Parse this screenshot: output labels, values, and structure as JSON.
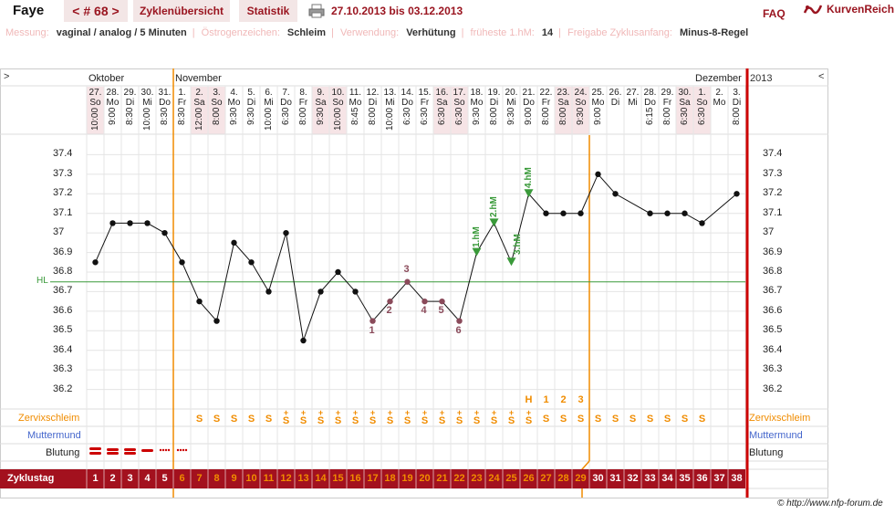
{
  "header": {
    "name": "Faye",
    "cycle_tab": "< # 68 >",
    "tab_overview": "Zyklenübersicht",
    "tab_stats": "Statistik",
    "date_range": "27.10.2013 bis 03.12.2013",
    "faq": "FAQ",
    "brand": "KurvenReich"
  },
  "info": [
    {
      "label": "Messung:",
      "value": "vaginal / analog / 5 Minuten"
    },
    {
      "label": "Östrogenzeichen:",
      "value": "Schleim"
    },
    {
      "label": "Verwendung:",
      "value": "Verhütung"
    },
    {
      "label": "früheste 1.hM:",
      "value": "14"
    },
    {
      "label": "Freigabe Zyklusanfang:",
      "value": "Minus-8-Regel"
    }
  ],
  "nav": {
    "left_arrow": ">",
    "right_arrow": "<",
    "year": "2013"
  },
  "months": [
    {
      "label": "Oktober",
      "col": 0
    },
    {
      "label": "November",
      "col": 5
    },
    {
      "label": "Dezember",
      "col": 35
    }
  ],
  "days": [
    {
      "date": "27.",
      "wd": "So",
      "time": "10:00",
      "we": true
    },
    {
      "date": "28.",
      "wd": "Mo",
      "time": "9:00",
      "we": false
    },
    {
      "date": "29.",
      "wd": "Di",
      "time": "8:30",
      "we": false
    },
    {
      "date": "30.",
      "wd": "Mi",
      "time": "10:00",
      "we": false
    },
    {
      "date": "31.",
      "wd": "Do",
      "time": "8:30",
      "we": false
    },
    {
      "date": "1.",
      "wd": "Fr",
      "time": "8:30",
      "we": false
    },
    {
      "date": "2.",
      "wd": "Sa",
      "time": "12:00",
      "we": true
    },
    {
      "date": "3.",
      "wd": "So",
      "time": "8:00",
      "we": true
    },
    {
      "date": "4.",
      "wd": "Mo",
      "time": "9:30",
      "we": false
    },
    {
      "date": "5.",
      "wd": "Di",
      "time": "9:30",
      "we": false
    },
    {
      "date": "6.",
      "wd": "Mi",
      "time": "10:00",
      "we": false
    },
    {
      "date": "7.",
      "wd": "Do",
      "time": "6:30",
      "we": false
    },
    {
      "date": "8.",
      "wd": "Fr",
      "time": "8:00",
      "we": false
    },
    {
      "date": "9.",
      "wd": "Sa",
      "time": "9:30",
      "we": true
    },
    {
      "date": "10.",
      "wd": "So",
      "time": "10:00",
      "we": true
    },
    {
      "date": "11.",
      "wd": "Mo",
      "time": "8:45",
      "we": false
    },
    {
      "date": "12.",
      "wd": "Di",
      "time": "8:00",
      "we": false
    },
    {
      "date": "13.",
      "wd": "Mi",
      "time": "10:00",
      "we": false
    },
    {
      "date": "14.",
      "wd": "Do",
      "time": "6:30",
      "we": false
    },
    {
      "date": "15.",
      "wd": "Fr",
      "time": "6:30",
      "we": false
    },
    {
      "date": "16.",
      "wd": "Sa",
      "time": "6:30",
      "we": true
    },
    {
      "date": "17.",
      "wd": "So",
      "time": "6:30",
      "we": true
    },
    {
      "date": "18.",
      "wd": "Mo",
      "time": "9:30",
      "we": false
    },
    {
      "date": "19.",
      "wd": "Di",
      "time": "8:00",
      "we": false
    },
    {
      "date": "20.",
      "wd": "Mi",
      "time": "9:30",
      "we": false
    },
    {
      "date": "21.",
      "wd": "Do",
      "time": "9:00",
      "we": false
    },
    {
      "date": "22.",
      "wd": "Fr",
      "time": "8:00",
      "we": false
    },
    {
      "date": "23.",
      "wd": "Sa",
      "time": "8:00",
      "we": true
    },
    {
      "date": "24.",
      "wd": "So",
      "time": "9:30",
      "we": true
    },
    {
      "date": "25.",
      "wd": "Mo",
      "time": "9:00",
      "we": false
    },
    {
      "date": "26.",
      "wd": "Di",
      "time": "",
      "we": false
    },
    {
      "date": "27.",
      "wd": "Mi",
      "time": "",
      "we": false
    },
    {
      "date": "28.",
      "wd": "Do",
      "time": "6:15",
      "we": false
    },
    {
      "date": "29.",
      "wd": "Fr",
      "time": "8:00",
      "we": false
    },
    {
      "date": "30.",
      "wd": "Sa",
      "time": "6:30",
      "we": true
    },
    {
      "date": "1.",
      "wd": "So",
      "time": "6:30",
      "we": true
    },
    {
      "date": "2.",
      "wd": "Mo",
      "time": "",
      "we": false
    },
    {
      "date": "3.",
      "wd": "Di",
      "time": "8:00",
      "we": false
    }
  ],
  "chart_data": {
    "type": "line",
    "x": [
      1,
      2,
      3,
      4,
      5,
      6,
      7,
      8,
      9,
      10,
      11,
      12,
      13,
      14,
      15,
      16,
      17,
      18,
      19,
      20,
      21,
      22,
      23,
      24,
      25,
      26,
      27,
      28,
      29,
      30,
      31,
      32,
      33,
      34,
      35,
      36,
      37,
      38
    ],
    "values": [
      36.85,
      37.05,
      37.05,
      37.05,
      37.0,
      36.85,
      36.65,
      36.55,
      36.95,
      36.85,
      36.7,
      37.0,
      36.45,
      36.7,
      36.8,
      36.7,
      36.55,
      36.65,
      36.75,
      36.65,
      36.65,
      36.55,
      36.9,
      37.05,
      36.85,
      37.2,
      37.1,
      37.1,
      37.1,
      37.3,
      37.2,
      null,
      37.1,
      37.1,
      37.1,
      37.05,
      null,
      37.2
    ],
    "yticks": [
      37.4,
      37.3,
      37.2,
      37.1,
      37.0,
      36.9,
      36.8,
      36.7,
      36.6,
      36.5,
      36.4,
      36.3,
      36.2
    ],
    "ytick_labels": [
      "37.4",
      "37.3",
      "37.2",
      "37.1",
      "37",
      "36.9",
      "36.8",
      "36.7",
      "36.6",
      "36.5",
      "36.4",
      "36.3",
      "36.2"
    ],
    "ylim": [
      36.1,
      37.5
    ],
    "hl": {
      "label": "HL",
      "value": 36.75
    },
    "low_labels": [
      {
        "day": 17,
        "text": "1"
      },
      {
        "day": 18,
        "text": "2"
      },
      {
        "day": 19,
        "text": "3"
      },
      {
        "day": 20,
        "text": "4"
      },
      {
        "day": 21,
        "text": "5"
      },
      {
        "day": 22,
        "text": "6"
      }
    ],
    "high_labels": [
      {
        "day": 23,
        "text": "1.hM"
      },
      {
        "day": 24,
        "text": "2.hM"
      },
      {
        "day": 25,
        "text": "3.hM"
      },
      {
        "day": 26,
        "text": "4.hM"
      }
    ],
    "fertile_window": {
      "start_day": 6,
      "end_day": 29
    },
    "grid": true
  },
  "rows": {
    "cervix_label": "Zervixschleim",
    "mm_label": "Muttermund",
    "bleeding_label": "Blutung",
    "cycle_label": "Zyklustag",
    "peak_labels": [
      {
        "day": 26,
        "text": "H"
      },
      {
        "day": 27,
        "text": "1"
      },
      {
        "day": 28,
        "text": "2"
      },
      {
        "day": 29,
        "text": "3"
      }
    ],
    "cervix": [
      "",
      "",
      "",
      "",
      "",
      "",
      "S",
      "S",
      "S",
      "S",
      "S",
      "S+",
      "S+",
      "S+",
      "S+",
      "S+",
      "S+",
      "S+",
      "S+",
      "S+",
      "S+",
      "S+",
      "S+",
      "S+",
      "S+",
      "S+",
      "S",
      "S",
      "S",
      "S",
      "S",
      "S",
      "S",
      "S",
      "S",
      "S",
      "",
      ""
    ],
    "bleeding": [
      "heavy",
      "medium",
      "medium",
      "light",
      "spot",
      "spot"
    ]
  },
  "footer": "© http://www.nfp-forum.de",
  "colors": {
    "brand": "#9a1520",
    "orange": "#f08c00",
    "hl": "#3a9a3a",
    "red": "#cc0000",
    "weekend": "#f6e4e6"
  }
}
